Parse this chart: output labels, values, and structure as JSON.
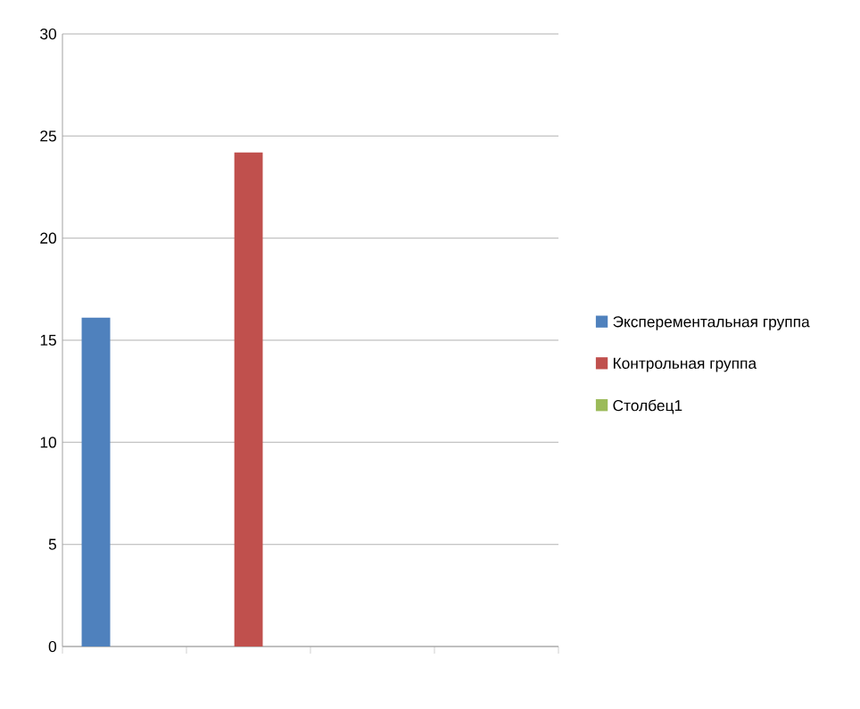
{
  "chart_data": {
    "type": "bar",
    "categories": [
      null,
      null,
      null,
      null
    ],
    "series": [
      {
        "name": "Эксперементальная группа",
        "color": "#4f81bd",
        "values": [
          16.1,
          null,
          null,
          null
        ]
      },
      {
        "name": "Контрольная группа",
        "color": "#c0504d",
        "values": [
          null,
          24.2,
          null,
          null
        ]
      },
      {
        "name": "Столбец1",
        "color": "#9bbb59",
        "values": [
          null,
          null,
          null,
          null
        ]
      }
    ],
    "ylim": [
      0,
      30
    ],
    "yticks": [
      0,
      5,
      10,
      15,
      20,
      25,
      30
    ],
    "grid": "y",
    "legend": "right",
    "tick_labels": "y"
  }
}
